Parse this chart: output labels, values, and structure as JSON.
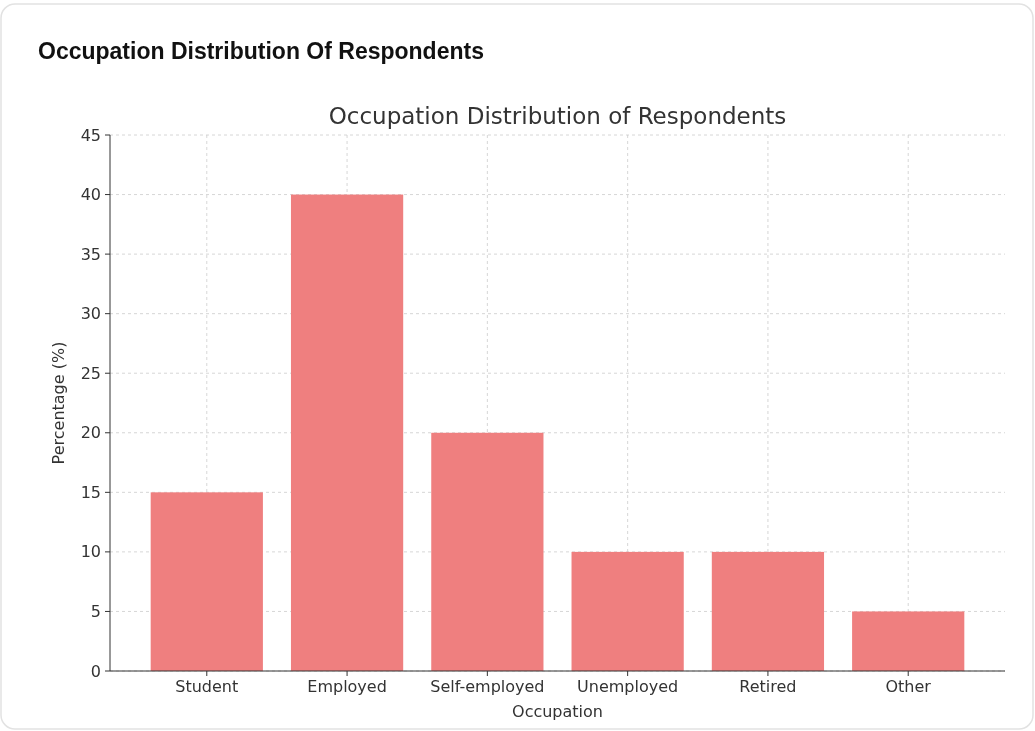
{
  "chart_data": {
    "type": "bar",
    "title": "Occupation Distribution Of Respondents",
    "subtitle": "Occupation Distribution of Respondents",
    "xlabel": "Occupation",
    "ylabel": "Percentage (%)",
    "categories": [
      "Student",
      "Employed",
      "Self-employed",
      "Unemployed",
      "Retired",
      "Other"
    ],
    "values": [
      15,
      40,
      20,
      10,
      10,
      5
    ],
    "color": "#ef7f7f",
    "ylim": [
      0,
      45
    ],
    "yticks": [
      0,
      5,
      10,
      15,
      20,
      25,
      30,
      35,
      40,
      45
    ],
    "grid": true
  }
}
